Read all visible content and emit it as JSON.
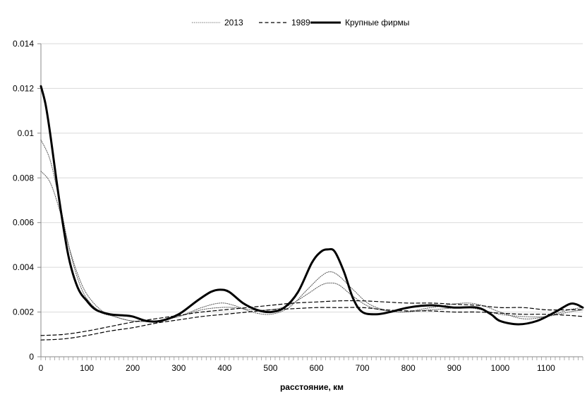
{
  "chart_data": {
    "type": "line",
    "xlabel": "расстояние, км",
    "ylabel": "",
    "xlim": [
      0,
      1180
    ],
    "ylim": [
      0,
      0.014
    ],
    "x_ticks": [
      0,
      100,
      200,
      300,
      400,
      500,
      600,
      700,
      800,
      900,
      1000,
      1100
    ],
    "y_ticks": [
      0,
      0.002,
      0.004,
      0.006,
      0.008,
      0.01,
      0.012,
      0.014
    ],
    "y_tick_labels": [
      "0",
      "0.002",
      "0.004",
      "0.006",
      "0.008",
      "0.01",
      "0.012",
      "0.014"
    ],
    "grid": "horizontal",
    "legend_position": "top-center",
    "legend": [
      {
        "name": "2013",
        "style": "dotted"
      },
      {
        "name": "1989",
        "style": "dashed"
      },
      {
        "name": "Крупные фирмы",
        "style": "solid-thick"
      }
    ],
    "series": [
      {
        "name": "Крупные фирмы",
        "style": "solid-thick",
        "x": [
          0,
          10,
          20,
          40,
          60,
          80,
          100,
          120,
          150,
          180,
          200,
          230,
          260,
          300,
          340,
          370,
          390,
          410,
          440,
          470,
          500,
          530,
          560,
          590,
          610,
          625,
          640,
          660,
          680,
          700,
          730,
          760,
          800,
          850,
          900,
          950,
          980,
          1000,
          1040,
          1080,
          1120,
          1150,
          1165,
          1180
        ],
        "y": [
          0.0121,
          0.0113,
          0.01,
          0.007,
          0.0045,
          0.0031,
          0.0025,
          0.0021,
          0.0019,
          0.00185,
          0.0018,
          0.0016,
          0.0016,
          0.0019,
          0.0025,
          0.0029,
          0.003,
          0.0029,
          0.0024,
          0.0021,
          0.002,
          0.0022,
          0.0029,
          0.0042,
          0.0047,
          0.0048,
          0.0047,
          0.0038,
          0.0026,
          0.002,
          0.0019,
          0.002,
          0.0022,
          0.0023,
          0.0022,
          0.0022,
          0.0019,
          0.0016,
          0.00145,
          0.0016,
          0.002,
          0.00235,
          0.00235,
          0.0022
        ]
      },
      {
        "name": "2013",
        "style": "dotted",
        "x": [
          0,
          20,
          40,
          60,
          80,
          100,
          130,
          160,
          200,
          250,
          300,
          350,
          390,
          420,
          460,
          500,
          540,
          580,
          610,
          630,
          650,
          680,
          720,
          780,
          850,
          920,
          960,
          1000,
          1050,
          1100,
          1150,
          1180
        ],
        "y": [
          0.0097,
          0.0088,
          0.007,
          0.005,
          0.0035,
          0.0026,
          0.002,
          0.0018,
          0.0016,
          0.0016,
          0.0018,
          0.0022,
          0.0024,
          0.0023,
          0.002,
          0.0019,
          0.0022,
          0.003,
          0.0036,
          0.0038,
          0.0036,
          0.003,
          0.0023,
          0.002,
          0.0022,
          0.0024,
          0.0023,
          0.002,
          0.0017,
          0.0018,
          0.0021,
          0.0022
        ]
      },
      {
        "name": "2013",
        "style": "dotted",
        "x": [
          0,
          20,
          40,
          60,
          80,
          100,
          130,
          160,
          200,
          250,
          300,
          350,
          390,
          420,
          460,
          500,
          540,
          580,
          610,
          630,
          650,
          680,
          720,
          780,
          850,
          920,
          960,
          1000,
          1050,
          1100,
          1150,
          1180
        ],
        "y": [
          0.0083,
          0.0078,
          0.0066,
          0.005,
          0.0037,
          0.0028,
          0.0021,
          0.0018,
          0.0016,
          0.0016,
          0.0018,
          0.0021,
          0.0022,
          0.0022,
          0.0021,
          0.0021,
          0.0023,
          0.0028,
          0.0032,
          0.0033,
          0.0032,
          0.0027,
          0.0022,
          0.002,
          0.0021,
          0.0022,
          0.0021,
          0.0019,
          0.0018,
          0.0018,
          0.002,
          0.0021
        ]
      },
      {
        "name": "1989",
        "style": "dashed",
        "x": [
          0,
          50,
          100,
          150,
          200,
          250,
          300,
          350,
          400,
          450,
          500,
          550,
          600,
          650,
          700,
          750,
          800,
          850,
          900,
          950,
          1000,
          1050,
          1100,
          1150,
          1180
        ],
        "y": [
          0.00095,
          0.001,
          0.00115,
          0.00135,
          0.00155,
          0.0017,
          0.00185,
          0.002,
          0.0021,
          0.0022,
          0.0023,
          0.0024,
          0.00245,
          0.0025,
          0.0025,
          0.00245,
          0.0024,
          0.0024,
          0.00235,
          0.0023,
          0.0022,
          0.0022,
          0.0021,
          0.0021,
          0.0021
        ]
      },
      {
        "name": "1989",
        "style": "dashed",
        "x": [
          0,
          50,
          100,
          150,
          200,
          250,
          300,
          350,
          400,
          450,
          500,
          550,
          600,
          650,
          700,
          750,
          800,
          850,
          900,
          950,
          1000,
          1050,
          1100,
          1150,
          1180
        ],
        "y": [
          0.00075,
          0.0008,
          0.00095,
          0.00115,
          0.0013,
          0.0015,
          0.00165,
          0.0018,
          0.0019,
          0.002,
          0.0021,
          0.00215,
          0.0022,
          0.0022,
          0.0022,
          0.0021,
          0.00205,
          0.00205,
          0.002,
          0.002,
          0.00195,
          0.0019,
          0.0019,
          0.00185,
          0.0018
        ]
      }
    ]
  }
}
